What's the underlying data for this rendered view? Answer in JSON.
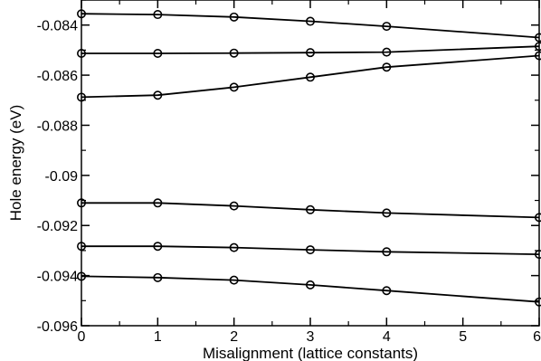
{
  "chart_data": {
    "type": "line",
    "xlabel": "Misalignment (lattice constants)",
    "ylabel": "Hole energy (eV)",
    "xlim": [
      0,
      6
    ],
    "ylim": [
      -0.096,
      -0.083
    ],
    "xticks": [
      0,
      1,
      2,
      3,
      4,
      5,
      6
    ],
    "xtick_labels": [
      "0",
      "1",
      "2",
      "3",
      "4",
      "5",
      "6"
    ],
    "yticks": [
      -0.096,
      -0.094,
      -0.092,
      -0.09,
      -0.088,
      -0.086,
      -0.084
    ],
    "ytick_labels": [
      "-0.096",
      "-0.094",
      "-0.092",
      "-0.09",
      "-0.088",
      "-0.086",
      "-0.084"
    ],
    "grid": false,
    "legend": false,
    "marker": "open-circle",
    "series": [
      {
        "x": [
          0,
          1,
          2,
          3,
          4,
          6
        ],
        "values": [
          -0.08355,
          -0.08358,
          -0.08368,
          -0.08385,
          -0.08405,
          -0.0845
        ]
      },
      {
        "x": [
          0,
          1,
          2,
          3,
          4,
          6
        ],
        "values": [
          -0.08513,
          -0.08513,
          -0.08512,
          -0.0851,
          -0.08508,
          -0.08485
        ]
      },
      {
        "x": [
          0,
          1,
          2,
          3,
          4,
          6
        ],
        "values": [
          -0.08688,
          -0.0868,
          -0.08648,
          -0.08608,
          -0.08568,
          -0.08522
        ]
      },
      {
        "x": [
          0,
          1,
          2,
          3,
          4,
          6
        ],
        "values": [
          -0.0911,
          -0.0911,
          -0.09122,
          -0.09137,
          -0.0915,
          -0.09168
        ]
      },
      {
        "x": [
          0,
          1,
          2,
          3,
          4,
          6
        ],
        "values": [
          -0.09283,
          -0.09283,
          -0.09288,
          -0.09297,
          -0.09305,
          -0.09315
        ]
      },
      {
        "x": [
          0,
          1,
          2,
          3,
          4,
          6
        ],
        "values": [
          -0.09403,
          -0.09408,
          -0.09418,
          -0.09437,
          -0.0946,
          -0.09505
        ]
      }
    ]
  }
}
